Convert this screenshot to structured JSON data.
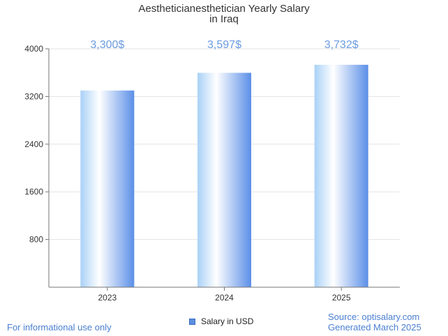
{
  "chart_data": {
    "type": "bar",
    "title_line1": "Aestheticianesthetician Yearly Salary",
    "title_line2": "in Iraq",
    "categories": [
      "2023",
      "2024",
      "2025"
    ],
    "values": [
      3300,
      3597,
      3732
    ],
    "data_labels": [
      "3,300$",
      "3,597$",
      "3,732$"
    ],
    "series_name": "Salary in USD",
    "y_ticks": [
      800,
      1600,
      2400,
      3200,
      4000
    ],
    "ylim": [
      0,
      4000
    ],
    "grid": true,
    "legend_position": "bottom-center",
    "bar_color": "#5b8fe0",
    "label_color": "#6a9be0"
  },
  "footer": {
    "disclaimer": "For informational use only",
    "source": "Source: optisalary.com",
    "generated": "Generated March 2025"
  },
  "colors": {
    "accent": "#4a7fd1"
  }
}
